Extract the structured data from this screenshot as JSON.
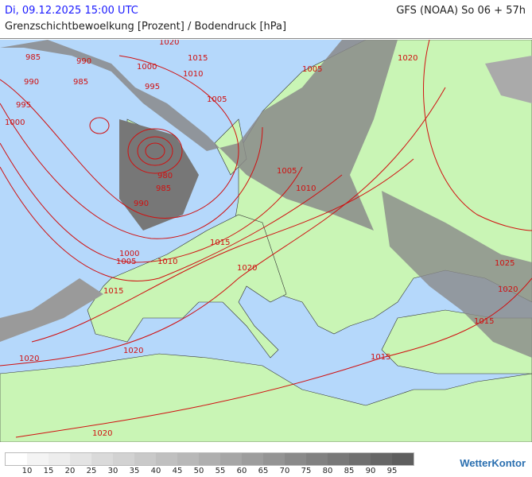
{
  "header": {
    "date": "Di, 09.12.2025 15:00 UTC",
    "model": "GFS (NOAA) So 06 + 57h",
    "parameter": "Grenzschichtbewoelkung [Prozent] / Bodendruck [hPa]"
  },
  "colors": {
    "land": "#c9f5b5",
    "sea": "#b5d8fb",
    "isobar": "#d01010",
    "cloud_dark": "#6a6a6a"
  },
  "isobar_labels": [
    "985",
    "990",
    "1020",
    "1015",
    "1000",
    "995",
    "1010",
    "985",
    "990",
    "1005",
    "995",
    "1000",
    "1005",
    "1020",
    "980",
    "985",
    "990",
    "1005",
    "1010",
    "1000",
    "1005",
    "1010",
    "1015",
    "1020",
    "1015",
    "1020",
    "1020",
    "1020",
    "1015",
    "1025",
    "1020",
    "1015"
  ],
  "legend": {
    "labels": [
      "10",
      "15",
      "20",
      "25",
      "30",
      "35",
      "40",
      "45",
      "50",
      "55",
      "60",
      "65",
      "70",
      "75",
      "80",
      "85",
      "90",
      "95"
    ],
    "colors": [
      "#ffffff",
      "#f4f4f4",
      "#ededed",
      "#e4e4e4",
      "#dadada",
      "#d2d2d2",
      "#c9c9c9",
      "#c0c0c0",
      "#b8b8b8",
      "#afafaf",
      "#a6a6a6",
      "#9d9d9d",
      "#949494",
      "#8a8a8a",
      "#818181",
      "#787878",
      "#6f6f6f",
      "#666666",
      "#5e5e5e"
    ]
  },
  "logo": "WetterKontor"
}
